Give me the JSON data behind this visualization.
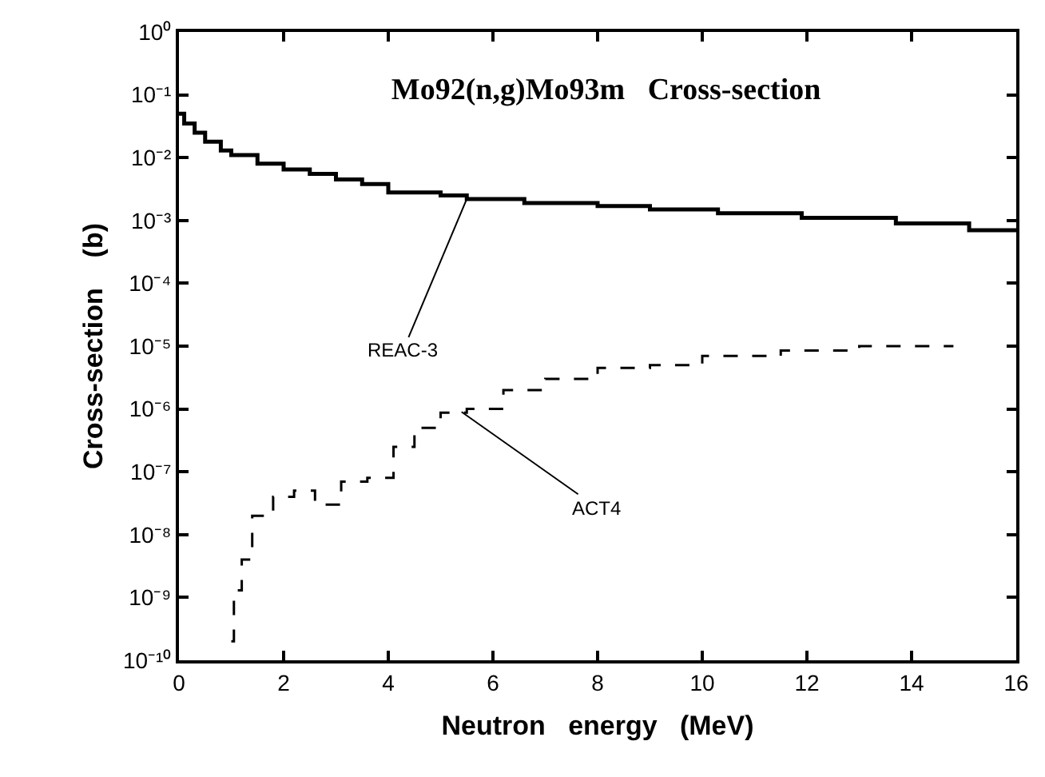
{
  "chart_data": {
    "type": "step",
    "title": "Mo92(n,g)Mo93m   Cross-section",
    "xlabel": "Neutron   energy   (MeV)",
    "ylabel": "Cross-section    (b)",
    "log": "y",
    "xlim": [
      0,
      16
    ],
    "xticks": [
      0,
      2,
      4,
      6,
      8,
      10,
      12,
      14,
      16
    ],
    "ylim": [
      1e-10,
      1
    ],
    "yticks": [
      {
        "value": 1e-10,
        "label": "10⁻¹⁰"
      },
      {
        "value": 1e-09,
        "label": "10⁻⁹"
      },
      {
        "value": 1e-08,
        "label": "10⁻⁸"
      },
      {
        "value": 1e-07,
        "label": "10⁻⁷"
      },
      {
        "value": 1e-06,
        "label": "10⁻⁶"
      },
      {
        "value": 1e-05,
        "label": "10⁻⁵"
      },
      {
        "value": 0.0001,
        "label": "10⁻⁴"
      },
      {
        "value": 0.001,
        "label": "10⁻³"
      },
      {
        "value": 0.01,
        "label": "10⁻²"
      },
      {
        "value": 0.1,
        "label": "10⁻¹"
      },
      {
        "value": 1,
        "label": "10⁰"
      }
    ],
    "series": [
      {
        "color": "#000000",
        "line_style": "solid",
        "x": [
          0,
          0.1,
          0.3,
          0.5,
          0.8,
          1.0,
          1.5,
          2,
          2.5,
          3,
          3.5,
          4,
          5,
          5.5,
          6.6,
          8,
          9,
          10.3,
          11.9,
          13.7,
          15.1,
          16
        ],
        "values": [
          0.05,
          0.035,
          0.025,
          0.018,
          0.013,
          0.011,
          0.008,
          0.0065,
          0.0055,
          0.0045,
          0.0038,
          0.0028,
          0.0025,
          0.0022,
          0.0019,
          0.0017,
          0.0015,
          0.0013,
          0.0011,
          0.0009,
          0.0007,
          0.0007
        ]
      },
      {
        "color": "#000000",
        "line_style": "dashed",
        "x": [
          1.0,
          1.05,
          1.2,
          1.4,
          1.8,
          2.2,
          2.6,
          3.1,
          3.6,
          4.1,
          4.5,
          5.0,
          5.5,
          6.2,
          7.0,
          8.0,
          9.0,
          10.0,
          11.5,
          13.0,
          14.8
        ],
        "values": [
          2e-10,
          1.3e-09,
          4e-09,
          2e-08,
          4e-08,
          5e-08,
          3e-08,
          7e-08,
          8e-08,
          2.5e-07,
          5e-07,
          8.7e-07,
          1e-06,
          2e-06,
          3e-06,
          4.5e-06,
          5e-06,
          7e-06,
          8.5e-06,
          1e-05,
          1e-05
        ]
      }
    ],
    "annotations": [
      {
        "text": "REAC-3",
        "x": 5.5,
        "y": 0.0022
      },
      {
        "text": "ACT4",
        "x": 5.4,
        "y": 9e-07
      }
    ]
  }
}
